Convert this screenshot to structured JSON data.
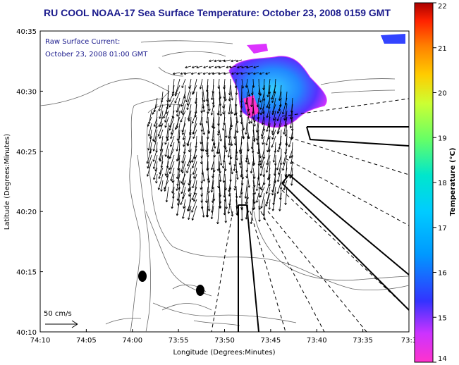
{
  "title": "RU COOL  NOAA-17  Sea Surface Temperature:  October 23, 2008 0159 GMT",
  "legend": {
    "line1": "Raw Surface Current:",
    "line2": "October 23, 2008 01:00 GMT"
  },
  "scale": {
    "label": "50 cm/s"
  },
  "axes": {
    "xlabel": "Longitude (Degrees:Minutes)",
    "ylabel": "Latitude (Degrees:Minutes)",
    "xticks": [
      "74:10",
      "74:05",
      "74:00",
      "73:55",
      "73:50",
      "73:45",
      "73:40",
      "73:35",
      "73:3"
    ],
    "yticks": [
      "40:35",
      "40:30",
      "40:25",
      "40:20",
      "40:15",
      "40:10"
    ]
  },
  "colorbar": {
    "label": "Temperature (°C)",
    "ticks": [
      "22",
      "21",
      "20",
      "19",
      "18",
      "17",
      "16",
      "15",
      "14"
    ],
    "min": 14,
    "max": 22
  },
  "colors": {
    "title": "#1a1a8c",
    "coast": "#666666",
    "arrow": "#000000"
  }
}
